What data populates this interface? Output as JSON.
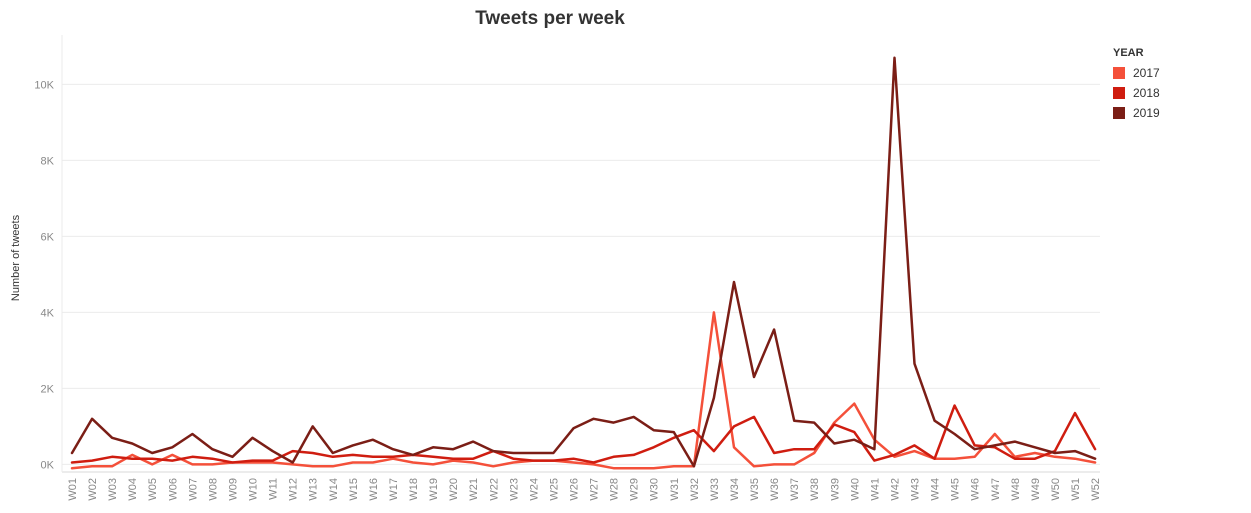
{
  "chart_data": {
    "type": "line",
    "title": "Tweets per week",
    "xlabel": "",
    "ylabel": "Number of tweets",
    "ylim": [
      -200,
      11300
    ],
    "yticks": [
      0,
      2000,
      4000,
      6000,
      8000,
      10000
    ],
    "ytick_labels": [
      "0K",
      "2K",
      "4K",
      "6K",
      "8K",
      "10K"
    ],
    "grid": true,
    "legend": {
      "title": "YEAR",
      "placement": "top-right"
    },
    "categories": [
      "W01",
      "W02",
      "W03",
      "W04",
      "W05",
      "W06",
      "W07",
      "W08",
      "W09",
      "W10",
      "W11",
      "W12",
      "W13",
      "W14",
      "W15",
      "W16",
      "W17",
      "W18",
      "W19",
      "W20",
      "W21",
      "W22",
      "W23",
      "W24",
      "W25",
      "W26",
      "W27",
      "W28",
      "W29",
      "W30",
      "W31",
      "W32",
      "W33",
      "W34",
      "W35",
      "W36",
      "W37",
      "W38",
      "W39",
      "W40",
      "W41",
      "W42",
      "W43",
      "W44",
      "W45",
      "W46",
      "W47",
      "W48",
      "W49",
      "W50",
      "W51",
      "W52"
    ],
    "series": [
      {
        "name": "2017",
        "color": "#f4503a",
        "values": [
          -100,
          -50,
          -50,
          250,
          0,
          250,
          0,
          0,
          50,
          50,
          50,
          0,
          -50,
          -50,
          50,
          50,
          150,
          50,
          0,
          100,
          50,
          -50,
          50,
          100,
          100,
          50,
          0,
          -100,
          -100,
          -100,
          -50,
          -50,
          4000,
          450,
          -50,
          0,
          0,
          300,
          1100,
          1600,
          650,
          200,
          350,
          150,
          150,
          200,
          800,
          200,
          300,
          200,
          150,
          50
        ]
      },
      {
        "name": "2018",
        "color": "#cf1d10",
        "values": [
          50,
          100,
          200,
          150,
          150,
          100,
          200,
          150,
          50,
          100,
          100,
          350,
          300,
          200,
          250,
          200,
          200,
          250,
          200,
          150,
          150,
          350,
          150,
          100,
          100,
          150,
          50,
          200,
          250,
          450,
          700,
          900,
          350,
          1000,
          1250,
          300,
          400,
          400,
          1050,
          850,
          100,
          250,
          500,
          150,
          1550,
          500,
          450,
          150,
          150,
          350,
          1350,
          400
        ]
      },
      {
        "name": "2019",
        "color": "#7b1e16",
        "values": [
          300,
          1200,
          700,
          550,
          300,
          450,
          800,
          400,
          200,
          700,
          350,
          50,
          1000,
          300,
          500,
          650,
          400,
          250,
          450,
          400,
          600,
          350,
          300,
          300,
          300,
          950,
          1200,
          1100,
          1250,
          900,
          850,
          -50,
          1750,
          4800,
          2300,
          3550,
          1150,
          1100,
          550,
          650,
          400,
          10700,
          2650,
          1150,
          800,
          400,
          500,
          600,
          450,
          300,
          350,
          150
        ]
      }
    ]
  }
}
